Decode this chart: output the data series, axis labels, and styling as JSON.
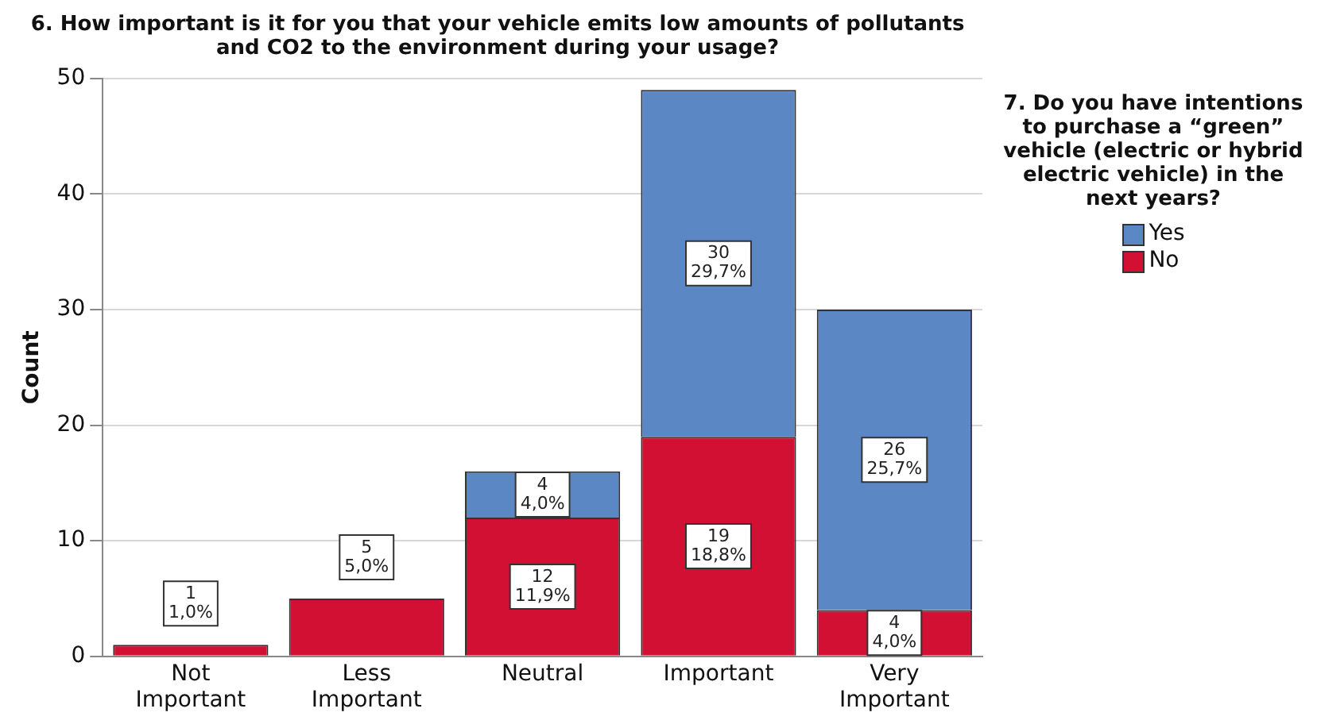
{
  "chart_data": {
    "type": "bar",
    "title": "6. How important is it for you that your vehicle emits low amounts of pollutants and CO2 to the environment during your usage?",
    "ylabel": "Count",
    "legend_title": "7. Do you have intentions to purchase a “green” vehicle (electric or hybrid electric vehicle) in the next years?",
    "categories": [
      "Not Important",
      "Less Important",
      "Neutral",
      "Important",
      "Very Important"
    ],
    "stacked": true,
    "ylim": [
      0,
      50
    ],
    "yticks": [
      0,
      10,
      20,
      30,
      40,
      50
    ],
    "grid": "y",
    "legend": "right",
    "series": [
      {
        "name": "No",
        "color": "#d11033",
        "values": [
          1,
          5,
          12,
          19,
          4
        ],
        "value_labels": [
          "1\n1,0%",
          "5\n5,0%",
          "12\n11,9%",
          "19\n18,8%",
          "4\n4,0%"
        ]
      },
      {
        "name": "Yes",
        "color": "#5b87c5",
        "values": [
          null,
          null,
          4,
          30,
          26
        ],
        "value_labels": [
          null,
          null,
          "4\n4,0%",
          "30\n29,7%",
          "26\n25,7%"
        ]
      }
    ]
  }
}
